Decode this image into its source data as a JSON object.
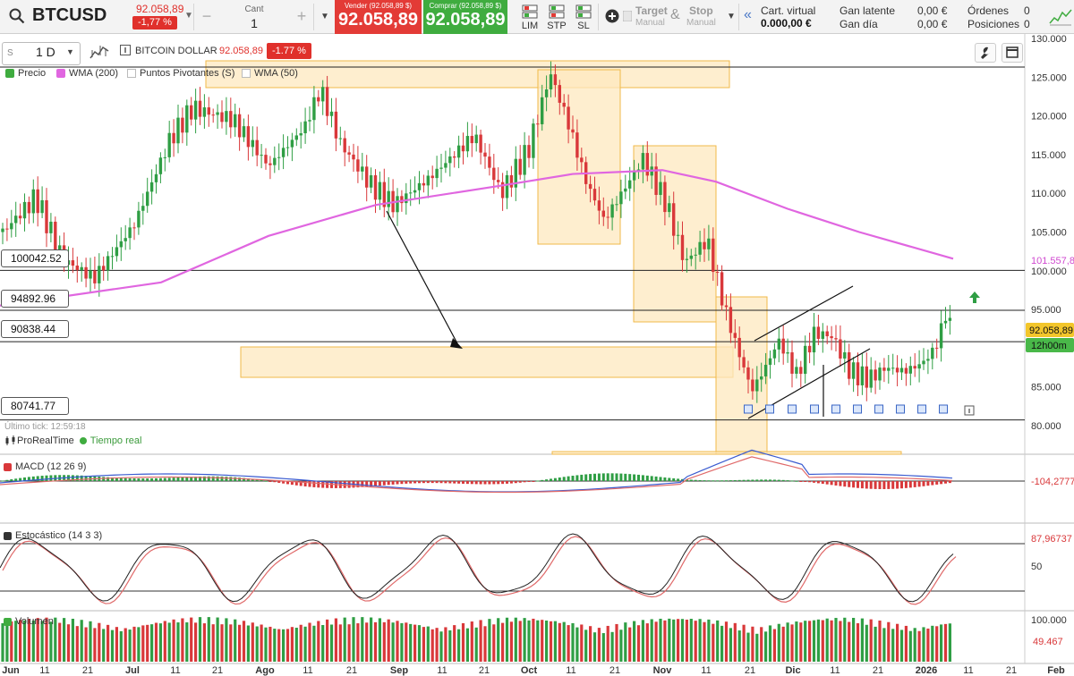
{
  "toolbar": {
    "symbol": "BTCUSD",
    "symbol_price": "92.058,89",
    "symbol_change": "-1,77 %",
    "qty_label": "Cant",
    "qty_value": "1",
    "qty_minus": "−",
    "qty_plus": "+",
    "sell_label": "Vender (92.058,89 $)",
    "sell_price": "92.058,89",
    "buy_label": "Comprar (92.058,89 $)",
    "buy_price": "92.058,89",
    "order_buttons": [
      "LIM",
      "STP",
      "SL"
    ],
    "target_label": "Target",
    "target_sub": "Manual",
    "amp": "&",
    "stop_label": "Stop",
    "stop_sub": "Manual",
    "account_label": "Cart. virtual",
    "account_value": "0.000,00 €",
    "gain_latent_label": "Gan latente",
    "gain_latent_value": "0,00 €",
    "gain_day_label": "Gan día",
    "gain_day_value": "0,00 €",
    "orders_label": "Órdenes",
    "orders_value": "0",
    "positions_label": "Posiciones",
    "positions_value": "0",
    "colors": {
      "sell": "#e33b36",
      "buy": "#3fac3f"
    }
  },
  "chart_header": {
    "timeframe": "1 D",
    "instrument_name": "BITCOIN DOLLAR",
    "instrument_price": "92.058,89",
    "instrument_change": "-1.77 %",
    "timeframe_prefix": "S"
  },
  "legend": {
    "precio": "Precio",
    "wma200": "WMA (200)",
    "pivotes": "Puntos Pivotantes (S)",
    "wma50": "WMA (50)"
  },
  "hline_labels": [
    "100042.52",
    "94892.96",
    "90838.44",
    "80741.77"
  ],
  "tick_info": "Último tick: 12:59:18",
  "prt": {
    "name": "ProRealTime",
    "status": "Tiempo real"
  },
  "panels": {
    "macd": "MACD (12 26 9)",
    "stoch": "Estocástico (14 3 3)",
    "volume": "Volumen"
  },
  "right_labels": {
    "last_price": "92.058,89",
    "countdown": "12h00m",
    "wma_value": "101.557,8",
    "macd_value": "-104,2777",
    "stoch_value": "87,96737",
    "vol_value": "49.467"
  },
  "chart_data": {
    "type": "candlestick",
    "price_axis": {
      "ticks": [
        "130.000",
        "125.000",
        "120.000",
        "115.000",
        "110.000",
        "105.000",
        "100.000",
        "95.000",
        "90.000",
        "85.000",
        "80.000"
      ],
      "min": 80000,
      "max": 130000
    },
    "x_axis": {
      "ticks": [
        "Jun",
        "11",
        "21",
        "Jul",
        "11",
        "21",
        "Ago",
        "11",
        "21",
        "Sep",
        "11",
        "21",
        "Oct",
        "11",
        "21",
        "Nov",
        "11",
        "21",
        "Dic",
        "11",
        "21",
        "2026",
        "11",
        "21",
        "Feb"
      ]
    },
    "horizontal_levels": [
      126300,
      100042.52,
      94892.96,
      90838.44,
      80741.77
    ],
    "stoch_axis": {
      "ticks": [
        "50"
      ]
    },
    "volume_axis": {
      "ticks": [
        "100.000"
      ]
    },
    "last_price": 92058.89,
    "colors": {
      "up": "#2f9e44",
      "down": "#d9383a",
      "wma200": "#e066e0",
      "zone": "#fde8bf",
      "zone_border": "#f0b94a"
    }
  }
}
